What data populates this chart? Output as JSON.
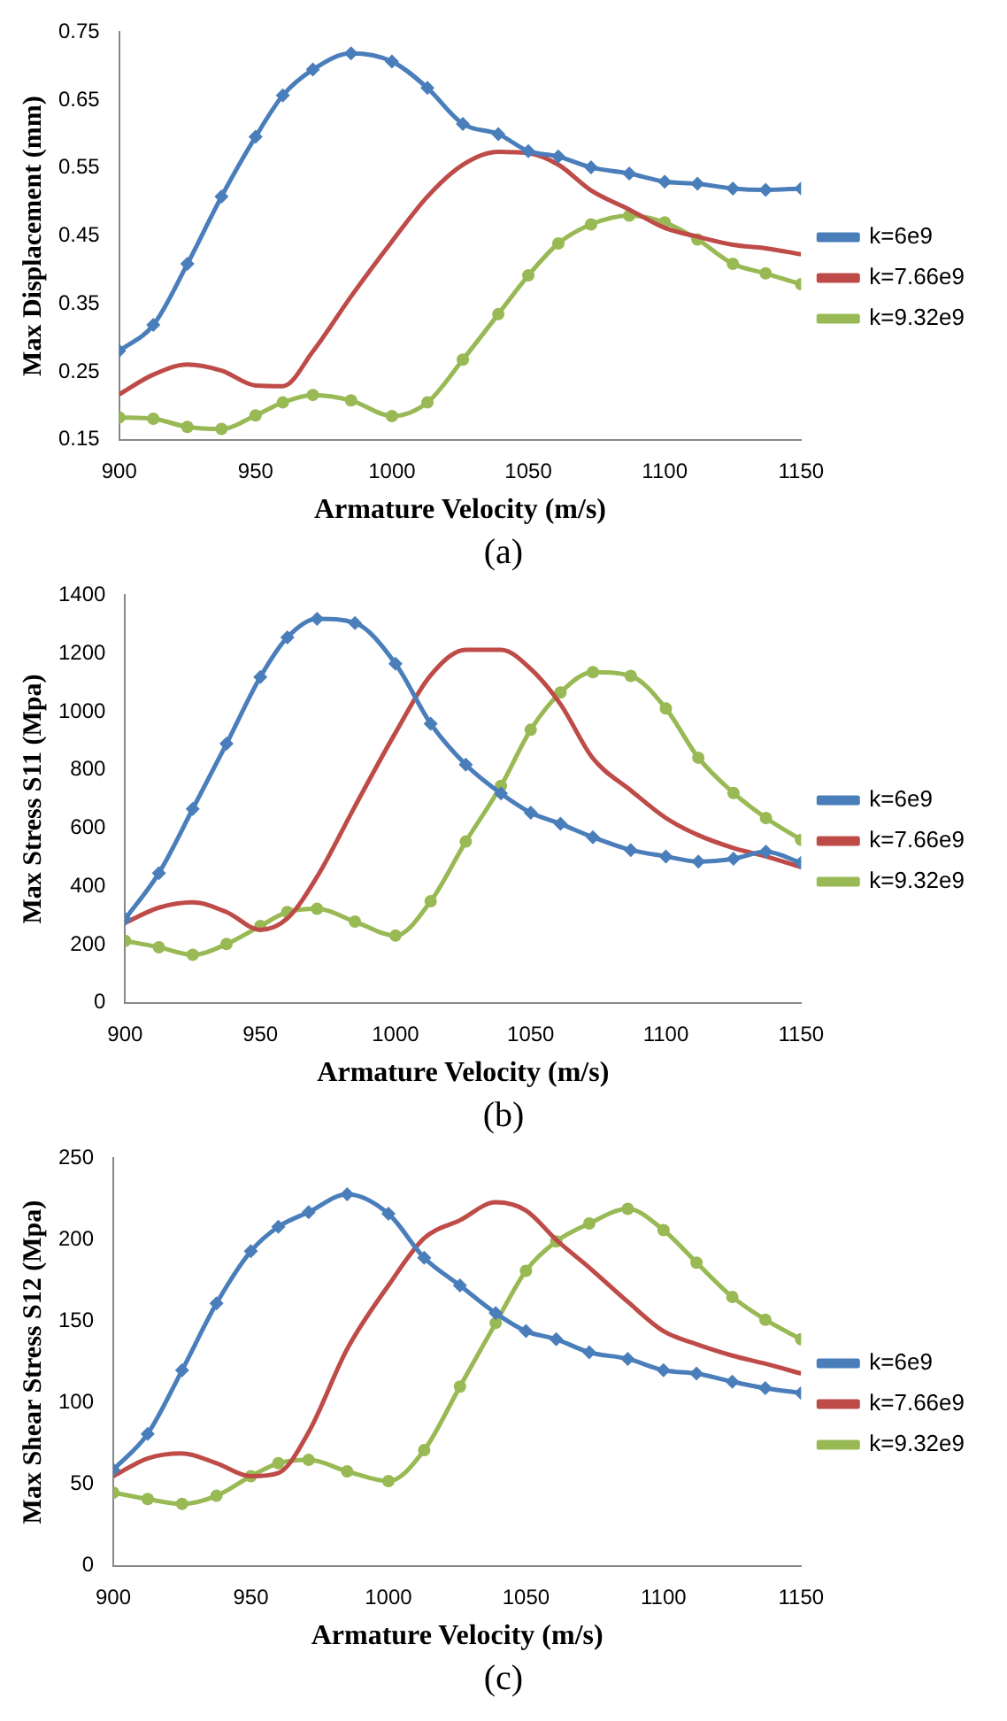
{
  "chart_data": [
    {
      "type": "line",
      "xlabel": "Armature Velocity (m/s)",
      "ylabel": "Max Displacement (mm)",
      "xlim": [
        900,
        1150
      ],
      "xticks": [
        900,
        950,
        1000,
        1050,
        1100,
        1150
      ],
      "ylim": [
        0.15,
        0.75
      ],
      "yticks": [
        0.15,
        0.25,
        0.35,
        0.45,
        0.55,
        0.65,
        0.75
      ],
      "grid": false,
      "legend": "right",
      "annotations": [
        "(a)"
      ],
      "x": [
        900,
        912.5,
        925,
        937.5,
        950,
        960,
        971,
        985,
        1000,
        1013,
        1026,
        1039,
        1050,
        1061,
        1073,
        1087,
        1100,
        1112,
        1125,
        1137,
        1150
      ],
      "series": [
        {
          "name": "k=6e9",
          "color": "#4a7ebb",
          "marker": "diamond",
          "values": [
            0.281,
            0.319,
            0.409,
            0.508,
            0.596,
            0.657,
            0.695,
            0.719,
            0.707,
            0.668,
            0.615,
            0.6,
            0.575,
            0.567,
            0.551,
            0.542,
            0.53,
            0.527,
            0.52,
            0.518,
            0.52
          ]
        },
        {
          "name": "k=7.66e9",
          "color": "#be4b48",
          "marker": "none",
          "values": [
            0.217,
            0.246,
            0.261,
            0.252,
            0.23,
            0.229,
            0.28,
            0.361,
            0.442,
            0.508,
            0.555,
            0.574,
            0.572,
            0.555,
            0.517,
            0.489,
            0.462,
            0.449,
            0.437,
            0.432,
            0.423
          ]
        },
        {
          "name": "k=9.32e9",
          "color": "#98b954",
          "marker": "circle",
          "values": [
            0.183,
            0.181,
            0.169,
            0.166,
            0.186,
            0.205,
            0.216,
            0.208,
            0.185,
            0.205,
            0.268,
            0.335,
            0.392,
            0.439,
            0.467,
            0.48,
            0.47,
            0.445,
            0.409,
            0.395,
            0.379
          ]
        }
      ]
    },
    {
      "type": "line",
      "xlabel": "Armature Velocity (m/s)",
      "ylabel": "Max Stress S11 (Mpa)",
      "xlim": [
        900,
        1150
      ],
      "xticks": [
        900,
        950,
        1000,
        1050,
        1100,
        1150
      ],
      "ylim": [
        0,
        1400
      ],
      "yticks": [
        0,
        200,
        400,
        600,
        800,
        1000,
        1200,
        1400
      ],
      "grid": false,
      "legend": "right",
      "annotations": [
        "(b)"
      ],
      "x": [
        900,
        912.5,
        925,
        937.5,
        950,
        960,
        971,
        985,
        1000,
        1013,
        1026,
        1039,
        1050,
        1061,
        1073,
        1087,
        1100,
        1112,
        1125,
        1137,
        1150
      ],
      "series": [
        {
          "name": "k=6e9",
          "color": "#4a7ebb",
          "marker": "diamond",
          "values": [
            288,
            446,
            666,
            890,
            1119,
            1255,
            1319,
            1305,
            1165,
            959,
            818,
            719,
            653,
            615,
            569,
            525,
            503,
            485,
            495,
            519,
            481
          ]
        },
        {
          "name": "k=7.66e9",
          "color": "#be4b48",
          "marker": "none",
          "values": [
            275,
            327,
            345,
            312,
            251,
            290,
            433,
            675,
            928,
            1125,
            1213,
            1213,
            1147,
            1026,
            840,
            730,
            635,
            576,
            532,
            503,
            466
          ]
        },
        {
          "name": "k=9.32e9",
          "color": "#98b954",
          "marker": "circle",
          "values": [
            213,
            191,
            165,
            202,
            264,
            312,
            323,
            279,
            231,
            349,
            554,
            745,
            938,
            1066,
            1136,
            1123,
            1011,
            842,
            721,
            635,
            560
          ]
        }
      ]
    },
    {
      "type": "line",
      "xlabel": "Armature Velocity (m/s)",
      "ylabel": "Max Shear Stress S12 (Mpa)",
      "xlim": [
        900,
        1150
      ],
      "xticks": [
        900,
        950,
        1000,
        1050,
        1100,
        1150
      ],
      "ylim": [
        0,
        250
      ],
      "yticks": [
        0,
        50,
        100,
        150,
        200,
        250
      ],
      "grid": false,
      "legend": "right",
      "annotations": [
        "(c)"
      ],
      "x": [
        900,
        912.5,
        925,
        937.5,
        950,
        960,
        971,
        985,
        1000,
        1013,
        1026,
        1039,
        1050,
        1061,
        1073,
        1087,
        1100,
        1112,
        1125,
        1137,
        1150
      ],
      "series": [
        {
          "name": "k=6e9",
          "color": "#4a7ebb",
          "marker": "diamond",
          "values": [
            59,
            81,
            120,
            161,
            193,
            208,
            217,
            228,
            216,
            189,
            172,
            155,
            144,
            139,
            131,
            127,
            120,
            118,
            113,
            109,
            106
          ]
        },
        {
          "name": "k=7.66e9",
          "color": "#be4b48",
          "marker": "none",
          "values": [
            55,
            66,
            69,
            63,
            55,
            57,
            82,
            133,
            172,
            201,
            212,
            223,
            218,
            200,
            183,
            162,
            144,
            136,
            129,
            124,
            118
          ]
        },
        {
          "name": "k=9.32e9",
          "color": "#98b954",
          "marker": "circle",
          "values": [
            45,
            41,
            38,
            43,
            55,
            63,
            65,
            58,
            52,
            71,
            110,
            149,
            181,
            199,
            210,
            219,
            206,
            186,
            165,
            151,
            139
          ]
        }
      ]
    }
  ]
}
